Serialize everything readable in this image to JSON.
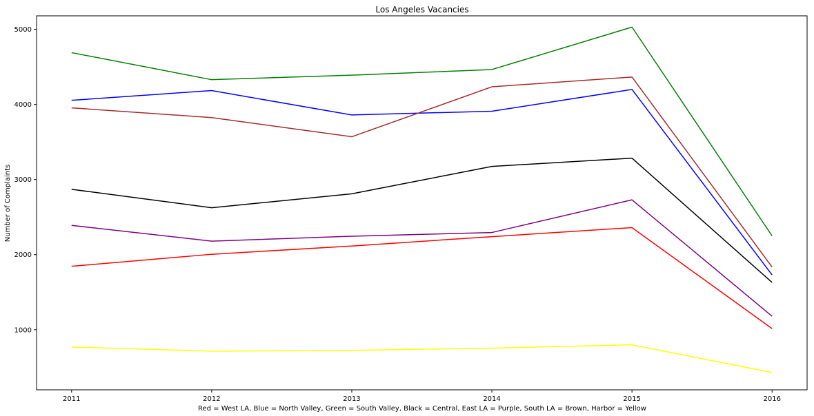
{
  "chart_data": {
    "type": "line",
    "title": "Los Angeles Vacancies",
    "xlabel": "Red = West LA, Blue = North Valley, Green = South Valley, Black = Central, East LA = Purple, South LA = Brown, Harbor = Yellow",
    "ylabel": "Number of Complaints",
    "x": [
      2011,
      2012,
      2013,
      2014,
      2015,
      2016
    ],
    "x_ticks": [
      "2011",
      "2012",
      "2013",
      "2014",
      "2015",
      "2016"
    ],
    "y_ticks": [
      1000,
      2000,
      3000,
      4000,
      5000
    ],
    "xlim": [
      2010.75,
      2016.25
    ],
    "ylim": [
      200,
      5180
    ],
    "grid": false,
    "legend": "none",
    "series": [
      {
        "color": "#008000",
        "values": [
          4690,
          4330,
          4390,
          4465,
          5030,
          2250
        ]
      },
      {
        "color": "#0000ff",
        "values": [
          4055,
          4185,
          3860,
          3910,
          4200,
          1730
        ]
      },
      {
        "color": "#a52a2a",
        "values": [
          3955,
          3825,
          3570,
          4235,
          4365,
          1835
        ]
      },
      {
        "color": "#000000",
        "values": [
          2870,
          2625,
          2810,
          3175,
          3285,
          1630
        ]
      },
      {
        "color": "#800080",
        "values": [
          2390,
          2180,
          2245,
          2295,
          2730,
          1180
        ]
      },
      {
        "color": "#ff0000",
        "values": [
          1845,
          2005,
          2115,
          2240,
          2360,
          1015
        ]
      },
      {
        "color": "#ffff00",
        "values": [
          770,
          715,
          725,
          755,
          800,
          430
        ]
      }
    ]
  }
}
